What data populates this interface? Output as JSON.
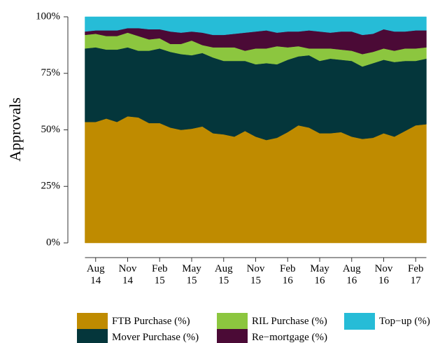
{
  "chart_data": {
    "type": "stacked_area",
    "y_label": "Approvals",
    "categories": [
      null,
      "Aug 14",
      null,
      null,
      "Nov 14",
      null,
      null,
      "Feb 15",
      null,
      null,
      "May 15",
      null,
      null,
      "Aug 15",
      null,
      null,
      "Nov 15",
      null,
      null,
      "Feb 16",
      null,
      null,
      "May 16",
      null,
      null,
      "Aug 16",
      null,
      null,
      "Nov 16",
      null,
      null,
      "Feb 17",
      null
    ],
    "ylim": [
      0,
      100
    ],
    "yticks": [
      {
        "value": 0,
        "label": "0%"
      },
      {
        "value": 25,
        "label": "25%"
      },
      {
        "value": 50,
        "label": "50%"
      },
      {
        "value": 75,
        "label": "75%"
      },
      {
        "value": 100,
        "label": "100%"
      }
    ],
    "series": [
      {
        "name": "FTB Purchase (%)",
        "color": "#bf8b00",
        "values": [
          53.5,
          53.5,
          55,
          53.5,
          56,
          55.5,
          53,
          53,
          51,
          50,
          50.5,
          51.5,
          48.5,
          48,
          47,
          49.5,
          47,
          45.5,
          46.5,
          49,
          52,
          51,
          48.5,
          48.5,
          49,
          47,
          46,
          46.5,
          48.5,
          47,
          49.5,
          52,
          52.5
        ]
      },
      {
        "name": "Mover Purchase (%)",
        "color": "#04363b",
        "values": [
          32.5,
          33,
          30.5,
          32,
          30.5,
          29.5,
          32,
          33,
          33.5,
          33.5,
          32.5,
          32.5,
          33.5,
          32.5,
          33.5,
          31,
          32,
          34,
          32.5,
          32,
          30.5,
          32,
          32,
          33,
          32,
          33.5,
          32,
          33,
          32.5,
          33,
          31,
          28.5,
          29
        ]
      },
      {
        "name": "RIL Purchase (%)",
        "color": "#8cc63f",
        "values": [
          6,
          6,
          6,
          6,
          6.5,
          6.5,
          5,
          4.5,
          3.5,
          4.5,
          6.5,
          3.5,
          4.5,
          6,
          6,
          4.5,
          7,
          6.5,
          8,
          5.5,
          4.5,
          3,
          5.5,
          4.5,
          4.5,
          4.5,
          5.5,
          5,
          5,
          5,
          5.5,
          5.5,
          5
        ]
      },
      {
        "name": "Re−mortgage (%)",
        "color": "#4b0a36",
        "values": [
          1.5,
          1.5,
          2.5,
          2.5,
          2,
          3.5,
          4.5,
          4,
          5.5,
          5,
          4,
          5.5,
          5.5,
          5.5,
          6,
          8,
          7.5,
          8,
          6,
          7,
          6.5,
          8,
          7.5,
          7,
          8,
          8.5,
          8.5,
          8,
          8.5,
          8.5,
          7.5,
          8,
          7.5
        ]
      },
      {
        "name": "Top−up (%)",
        "color": "#26bcd7",
        "values": [
          6.5,
          6,
          6,
          6,
          5,
          5,
          5.5,
          5.5,
          6.5,
          7,
          6.5,
          7,
          8,
          8,
          7.5,
          7,
          6.5,
          6,
          7,
          6.5,
          6.5,
          6,
          6.5,
          7,
          6.5,
          6.5,
          8,
          7.5,
          5.5,
          6.5,
          6.5,
          6,
          6
        ]
      }
    ]
  }
}
